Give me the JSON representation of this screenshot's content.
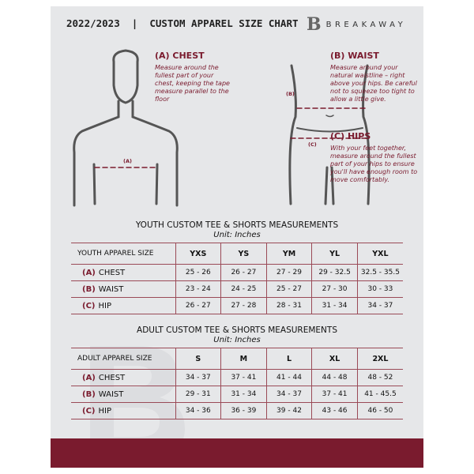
{
  "header": {
    "title": "2022/2023  |  CUSTOM APPAREL SIZE CHART",
    "brand": "BREAKAWAY",
    "logo_letter": "B"
  },
  "guide": {
    "chest": {
      "title": "(A) CHEST",
      "desc": "Measure around the fullest part of your chest, keeping the tape measure parallel to the floor",
      "marker": "(A)"
    },
    "waist": {
      "title": "(B) WAIST",
      "desc": "Measure around your natural waistline – right above your hips. Be careful not to squeeze too tight to allow a little give.",
      "marker": "(B)"
    },
    "hips": {
      "title": "(C) HIPS",
      "desc": "With your feet together, measure around the fullest part of your hips to ensure you'll have enough room to move comfortably.",
      "marker": "(C)"
    }
  },
  "youth": {
    "title": "YOUTH CUSTOM TEE & SHORTS MEASUREMENTS",
    "unit": "Unit: Inches",
    "header": [
      "YOUTH APPAREL SIZE",
      "YXS",
      "YS",
      "YM",
      "YL",
      "YXL"
    ],
    "rows": [
      {
        "code": "(A)",
        "name": "CHEST",
        "values": [
          "25 - 26",
          "26 - 27",
          "27 - 29",
          "29 - 32.5",
          "32.5 - 35.5"
        ]
      },
      {
        "code": "(B)",
        "name": "WAIST",
        "values": [
          "23 - 24",
          "24 - 25",
          "25 - 27",
          "27 - 30",
          "30 - 33"
        ]
      },
      {
        "code": "(C)",
        "name": "HIP",
        "values": [
          "26 - 27",
          "27 - 28",
          "28 - 31",
          "31 - 34",
          "34 - 37"
        ]
      }
    ]
  },
  "adult": {
    "title": "ADULT CUSTOM TEE & SHORTS MEASUREMENTS",
    "unit": "Unit: Inches",
    "header": [
      "ADULT APPAREL SIZE",
      "S",
      "M",
      "L",
      "XL",
      "2XL"
    ],
    "rows": [
      {
        "code": "(A)",
        "name": "CHEST",
        "values": [
          "34 - 37",
          "37 - 41",
          "41 - 44",
          "44 - 48",
          "48 - 52"
        ]
      },
      {
        "code": "(B)",
        "name": "WAIST",
        "values": [
          "29 - 31",
          "31 - 34",
          "34 - 37",
          "37 - 41",
          "41 - 45.5"
        ]
      },
      {
        "code": "(C)",
        "name": "HIP",
        "values": [
          "34 - 36",
          "36 - 39",
          "39 - 42",
          "43 - 46",
          "46 - 50"
        ]
      }
    ]
  },
  "colors": {
    "accent": "#7a1b2e",
    "page": "#e6e7e9"
  }
}
